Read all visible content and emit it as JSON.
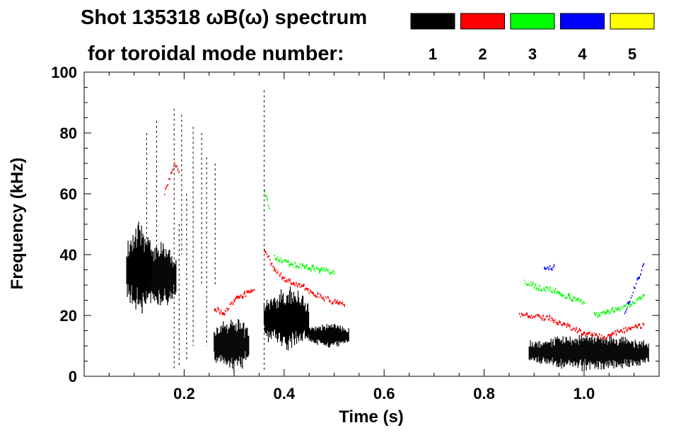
{
  "chart_data": {
    "type": "heatmap",
    "title_line1": "Shot 135318 ωB(ω) spectrum",
    "title_line2": "for toroidal mode number:",
    "xlabel": "Time (s)",
    "ylabel": "Frequency (kHz)",
    "xlim": [
      0.0,
      1.15
    ],
    "ylim": [
      0,
      100
    ],
    "x_ticks": [
      {
        "value": 0.2,
        "label": "0.2"
      },
      {
        "value": 0.4,
        "label": "0.4"
      },
      {
        "value": 0.6,
        "label": "0.6"
      },
      {
        "value": 0.8,
        "label": "0.8"
      },
      {
        "value": 1.0,
        "label": "1.0"
      }
    ],
    "y_ticks": [
      {
        "value": 0,
        "label": "0"
      },
      {
        "value": 20,
        "label": "20"
      },
      {
        "value": 40,
        "label": "40"
      },
      {
        "value": 60,
        "label": "60"
      },
      {
        "value": 80,
        "label": "80"
      },
      {
        "value": 100,
        "label": "100"
      }
    ],
    "legend": [
      {
        "mode": "1",
        "color": "#000000"
      },
      {
        "mode": "2",
        "color": "#ff0000"
      },
      {
        "mode": "3",
        "color": "#00ff00"
      },
      {
        "mode": "4",
        "color": "#0000ff"
      },
      {
        "mode": "5",
        "color": "#ffff00"
      }
    ],
    "series": [
      {
        "name": "n=1",
        "color": "#000000",
        "regions": [
          {
            "t0": 0.085,
            "t1": 0.135,
            "f0": 22,
            "f1": 48
          },
          {
            "t0": 0.12,
            "t1": 0.185,
            "f0": 24,
            "f1": 42
          },
          {
            "t0": 0.26,
            "t1": 0.33,
            "f0": 3,
            "f1": 18
          },
          {
            "t0": 0.36,
            "t1": 0.45,
            "f0": 10,
            "f1": 28
          },
          {
            "t0": 0.45,
            "t1": 0.53,
            "f0": 10,
            "f1": 17
          },
          {
            "t0": 0.89,
            "t1": 1.13,
            "f0": 3,
            "f1": 13
          }
        ]
      },
      {
        "name": "n=2",
        "color": "#ff0000",
        "tracks": [
          {
            "t": [
              0.36,
              0.38,
              0.4,
              0.43,
              0.46,
              0.49,
              0.52
            ],
            "f": [
              42,
              35,
              32,
              30,
              27,
              25,
              23
            ]
          },
          {
            "t": [
              0.26,
              0.28,
              0.3,
              0.32,
              0.34
            ],
            "f": [
              22,
              21,
              25,
              27,
              28
            ]
          },
          {
            "t": [
              0.87,
              0.9,
              0.93,
              0.96,
              1.0,
              1.04,
              1.08,
              1.12
            ],
            "f": [
              20,
              20,
              19,
              17,
              14,
              13,
              15,
              17
            ]
          },
          {
            "t": [
              0.16,
              0.17,
              0.18,
              0.19
            ],
            "f": [
              60,
              65,
              70,
              66
            ]
          }
        ]
      },
      {
        "name": "n=3",
        "color": "#00ff00",
        "tracks": [
          {
            "t": [
              0.38,
              0.41,
              0.44,
              0.47,
              0.5
            ],
            "f": [
              39,
              37,
              36,
              35,
              34
            ]
          },
          {
            "t": [
              0.88,
              0.91,
              0.94,
              0.97,
              1.0
            ],
            "f": [
              31,
              29,
              28,
              26,
              24
            ]
          },
          {
            "t": [
              1.02,
              1.06,
              1.1,
              1.12
            ],
            "f": [
              20,
              22,
              24,
              27
            ]
          },
          {
            "t": [
              0.36,
              0.365,
              0.37
            ],
            "f": [
              61,
              58,
              55
            ]
          }
        ]
      },
      {
        "name": "n=4",
        "color": "#0000ff",
        "tracks": [
          {
            "t": [
              0.92,
              0.94
            ],
            "f": [
              35,
              36
            ]
          },
          {
            "t": [
              1.08,
              1.12
            ],
            "f": [
              21,
              37
            ]
          }
        ]
      },
      {
        "name": "n=5",
        "color": "#ffff00",
        "tracks": []
      }
    ]
  }
}
